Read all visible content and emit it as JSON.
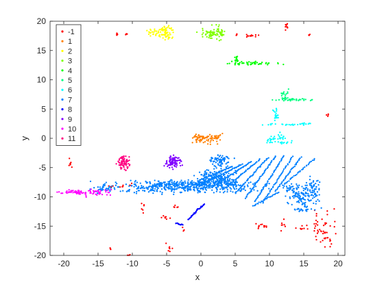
{
  "chart_data": {
    "type": "scatter",
    "title": "",
    "xlabel": "x",
    "ylabel": "y",
    "xlim": [
      -22,
      21
    ],
    "ylim": [
      -20,
      20
    ],
    "xticks": [
      -20,
      -15,
      -10,
      -5,
      0,
      5,
      10,
      15,
      20
    ],
    "yticks": [
      -20,
      -15,
      -10,
      -5,
      0,
      5,
      10,
      15,
      20
    ],
    "grid": false,
    "legend_position": "top-left",
    "series": [
      {
        "name": "-1",
        "color": "#ff0000",
        "clusters": [
          {
            "center": [
              -12.3,
              17.7
            ],
            "spread": [
              0.2,
              0.15
            ],
            "n": 5
          },
          {
            "center": [
              -10.9,
              17.8
            ],
            "spread": [
              0.1,
              0.15
            ],
            "n": 4
          },
          {
            "center": [
              7.5,
              17.5
            ],
            "spread": [
              0.9,
              0.1
            ],
            "n": 14
          },
          {
            "center": [
              5.2,
              17.7
            ],
            "spread": [
              0.15,
              0.1
            ],
            "n": 3
          },
          {
            "center": [
              12.5,
              19.2
            ],
            "spread": [
              0.15,
              0.4
            ],
            "n": 9
          },
          {
            "center": [
              15.8,
              17.6
            ],
            "spread": [
              0.1,
              0.1
            ],
            "n": 3
          },
          {
            "center": [
              18.5,
              3.8
            ],
            "spread": [
              0.1,
              0.2
            ],
            "n": 4
          },
          {
            "center": [
              -19.1,
              -4.2
            ],
            "spread": [
              0.15,
              0.35
            ],
            "n": 7
          },
          {
            "center": [
              -13.2,
              -8.2
            ],
            "spread": [
              0.3,
              0.1
            ],
            "n": 4
          },
          {
            "center": [
              -11.7,
              -8.2
            ],
            "spread": [
              0.2,
              0.1
            ],
            "n": 4
          },
          {
            "center": [
              -10.3,
              -7.9
            ],
            "spread": [
              0.2,
              0.1
            ],
            "n": 4
          },
          {
            "center": [
              -8.3,
              -11.8
            ],
            "spread": [
              0.15,
              0.5
            ],
            "n": 6
          },
          {
            "center": [
              -5.3,
              -13.6
            ],
            "spread": [
              0.3,
              0.3
            ],
            "n": 7
          },
          {
            "center": [
              -3.7,
              -11.6
            ],
            "spread": [
              0.2,
              0.2
            ],
            "n": 5
          },
          {
            "center": [
              -4.5,
              -18.7
            ],
            "spread": [
              0.3,
              0.4
            ],
            "n": 7
          },
          {
            "center": [
              -2.6,
              -15.5
            ],
            "spread": [
              0.15,
              0.2
            ],
            "n": 3
          },
          {
            "center": [
              -13.2,
              -19.0
            ],
            "spread": [
              0.15,
              0.15
            ],
            "n": 3
          },
          {
            "center": [
              -10.4,
              -20.0
            ],
            "spread": [
              0.15,
              0.1
            ],
            "n": 3
          },
          {
            "center": [
              9.0,
              -15.2
            ],
            "spread": [
              0.7,
              0.25
            ],
            "n": 12
          },
          {
            "center": [
              11.7,
              -14.6
            ],
            "spread": [
              0.3,
              0.5
            ],
            "n": 7
          },
          {
            "center": [
              15.2,
              -15.2
            ],
            "spread": [
              0.8,
              0.3
            ],
            "n": 10
          },
          {
            "center": [
              17.6,
              -14.3
            ],
            "spread": [
              0.9,
              1.2
            ],
            "n": 30
          },
          {
            "center": [
              17.9,
              -16.8
            ],
            "spread": [
              0.4,
              1.0
            ],
            "n": 14
          },
          {
            "center": [
              18.9,
              -17.9
            ],
            "spread": [
              0.2,
              0.4
            ],
            "n": 5
          }
        ]
      },
      {
        "name": "1",
        "color": "#ff8000",
        "clusters": [
          {
            "center": [
              0.2,
              0.0
            ],
            "spread": [
              0.8,
              0.4
            ],
            "n": 65
          },
          {
            "center": [
              2.4,
              0.1
            ],
            "spread": [
              0.3,
              0.5
            ],
            "n": 22
          }
        ]
      },
      {
        "name": "2",
        "color": "#ffff00",
        "clusters": [
          {
            "center": [
              -5.7,
              17.9
            ],
            "spread": [
              0.9,
              0.5
            ],
            "n": 70
          },
          {
            "center": [
              -4.9,
              18.6
            ],
            "spread": [
              0.4,
              0.4
            ],
            "n": 20
          }
        ]
      },
      {
        "name": "3",
        "color": "#80ff00",
        "clusters": [
          {
            "center": [
              1.6,
              17.7
            ],
            "spread": [
              0.9,
              0.4
            ],
            "n": 65
          },
          {
            "center": [
              2.3,
              18.5
            ],
            "spread": [
              0.5,
              0.4
            ],
            "n": 15
          }
        ]
      },
      {
        "name": "4",
        "color": "#00ff00",
        "clusters": [
          {
            "center": [
              7.0,
              12.8
            ],
            "spread": [
              2.0,
              0.15
            ],
            "n": 45
          },
          {
            "center": [
              5.2,
              13.4
            ],
            "spread": [
              0.15,
              0.5
            ],
            "n": 15
          }
        ]
      },
      {
        "name": "5",
        "color": "#00ff80",
        "clusters": [
          {
            "center": [
              13.4,
              6.6
            ],
            "spread": [
              1.5,
              0.1
            ],
            "n": 35
          },
          {
            "center": [
              12.4,
              7.4
            ],
            "spread": [
              0.4,
              0.5
            ],
            "n": 16
          }
        ]
      },
      {
        "name": "6",
        "color": "#00ffff",
        "clusters": [
          {
            "center": [
              11.0,
              3.8
            ],
            "spread": [
              0.2,
              0.6
            ],
            "n": 20
          },
          {
            "center": [
              12.8,
              2.4
            ],
            "spread": [
              1.6,
              0.1
            ],
            "n": 30
          },
          {
            "center": [
              10.2,
              -0.4
            ],
            "spread": [
              0.4,
              0.35
            ],
            "n": 16
          },
          {
            "center": [
              11.8,
              0.0
            ],
            "spread": [
              0.6,
              0.4
            ],
            "n": 18
          },
          {
            "center": [
              11.9,
              -0.7
            ],
            "spread": [
              0.9,
              0.1
            ],
            "n": 12
          }
        ]
      },
      {
        "name": "7",
        "color": "#0080ff",
        "clusters": [
          {
            "center": [
              -3.0,
              -8.3
            ],
            "spread": [
              5.2,
              0.5
            ],
            "n": 420
          },
          {
            "center": [
              -1.0,
              -7.7
            ],
            "spread": [
              3.5,
              0.2
            ],
            "n": 120
          },
          {
            "center": [
              2.2,
              -7.0
            ],
            "spread": [
              1.3,
              0.8
            ],
            "n": 200
          },
          {
            "center": [
              -14.2,
              -8.6
            ],
            "spread": [
              0.6,
              0.2
            ],
            "n": 18
          },
          {
            "center": [
              2.9,
              -3.8
            ],
            "spread": [
              0.8,
              0.45
            ],
            "n": 70
          },
          {
            "center": [
              15.0,
              -9.9
            ],
            "spread": [
              1.1,
              1.1
            ],
            "n": 130
          },
          {
            "center": [
              16.5,
              -8.2
            ],
            "spread": [
              0.5,
              0.9
            ],
            "n": 30
          },
          {
            "center": [
              13.0,
              -8.8
            ],
            "spread": [
              0.6,
              0.4
            ],
            "n": 20
          },
          {
            "center": [
              15.0,
              -12.2
            ],
            "spread": [
              0.7,
              0.2
            ],
            "n": 15
          }
        ],
        "lines": [
          {
            "from": [
              4.6,
              -4.8
            ],
            "to": [
              -0.5,
              -7.3
            ],
            "n": 40
          },
          {
            "from": [
              6.0,
              -4.4
            ],
            "to": [
              0.2,
              -7.8
            ],
            "n": 45
          },
          {
            "from": [
              7.3,
              -4.0
            ],
            "to": [
              1.6,
              -8.4
            ],
            "n": 45
          },
          {
            "from": [
              8.6,
              -3.6
            ],
            "to": [
              3.2,
              -8.8
            ],
            "n": 45
          },
          {
            "from": [
              9.8,
              -3.3
            ],
            "to": [
              5.0,
              -9.4
            ],
            "n": 45
          },
          {
            "from": [
              10.9,
              -3.0
            ],
            "to": [
              6.5,
              -10.2
            ],
            "n": 45
          },
          {
            "from": [
              12.1,
              -3.0
            ],
            "to": [
              7.9,
              -10.8
            ],
            "n": 45
          },
          {
            "from": [
              13.4,
              -3.1
            ],
            "to": [
              9.0,
              -11.0
            ],
            "n": 40
          },
          {
            "from": [
              14.6,
              -3.2
            ],
            "to": [
              10.9,
              -9.0
            ],
            "n": 35
          },
          {
            "from": [
              16.6,
              -3.5
            ],
            "to": [
              12.0,
              -8.0
            ],
            "n": 30
          },
          {
            "from": [
              11.3,
              -9.2
            ],
            "to": [
              7.6,
              -11.6
            ],
            "n": 25
          }
        ]
      },
      {
        "name": "8",
        "color": "#0000ff",
        "clusters": [],
        "lines": [
          {
            "from": [
              -3.7,
              -14.5
            ],
            "to": [
              -2.6,
              -14.8
            ],
            "n": 12
          },
          {
            "from": [
              -0.5,
              -12.2
            ],
            "to": [
              0.5,
              -11.3
            ],
            "n": 12
          },
          {
            "from": [
              -1.9,
              -13.9
            ],
            "to": [
              -0.5,
              -12.3
            ],
            "n": 18
          }
        ]
      },
      {
        "name": "9",
        "color": "#8000ff",
        "clusters": [
          {
            "center": [
              -4.0,
              -4.0
            ],
            "spread": [
              0.6,
              0.5
            ],
            "n": 90
          }
        ]
      },
      {
        "name": "10",
        "color": "#ff00ff",
        "clusters": [
          {
            "center": [
              -18.1,
              -9.2
            ],
            "spread": [
              1.4,
              0.15
            ],
            "n": 45
          },
          {
            "center": [
              -15.2,
              -9.3
            ],
            "spread": [
              1.3,
              0.3
            ],
            "n": 40
          }
        ]
      },
      {
        "name": "11",
        "color": "#ff0080",
        "clusters": [
          {
            "center": [
              -11.3,
              -4.1
            ],
            "spread": [
              0.4,
              0.55
            ],
            "n": 80
          }
        ]
      }
    ]
  }
}
